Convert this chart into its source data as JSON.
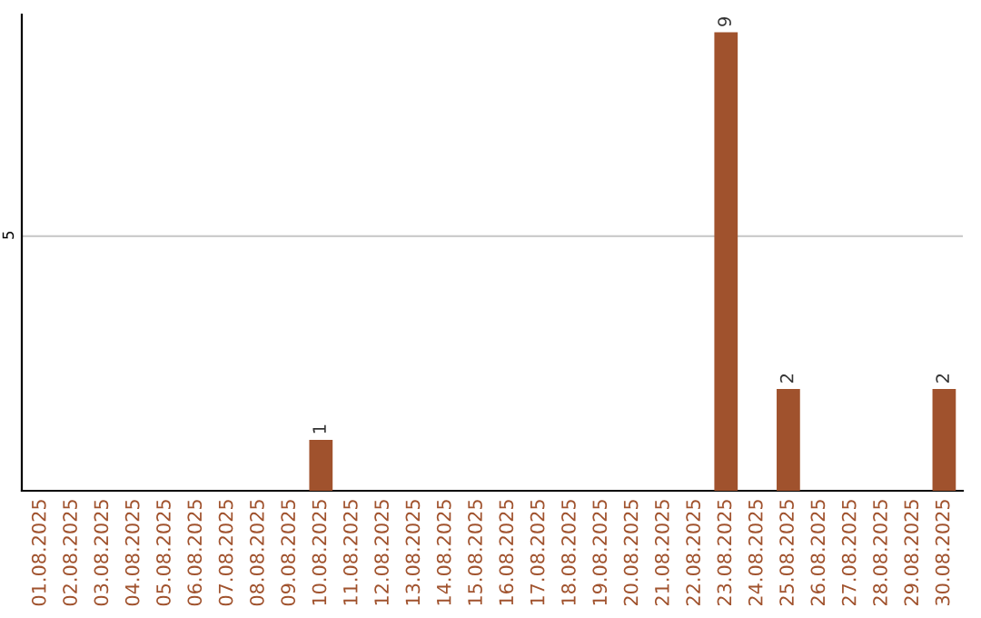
{
  "chart_data": {
    "type": "bar",
    "categories": [
      "01.08.2025",
      "02.08.2025",
      "03.08.2025",
      "04.08.2025",
      "05.08.2025",
      "06.08.2025",
      "07.08.2025",
      "08.08.2025",
      "09.08.2025",
      "10.08.2025",
      "11.08.2025",
      "12.08.2025",
      "13.08.2025",
      "14.08.2025",
      "15.08.2025",
      "16.08.2025",
      "17.08.2025",
      "18.08.2025",
      "19.08.2025",
      "20.08.2025",
      "21.08.2025",
      "22.08.2025",
      "23.08.2025",
      "24.08.2025",
      "25.08.2025",
      "26.08.2025",
      "27.08.2025",
      "28.08.2025",
      "29.08.2025",
      "30.08.2025"
    ],
    "values": [
      0,
      0,
      0,
      0,
      0,
      0,
      0,
      0,
      0,
      1,
      0,
      0,
      0,
      0,
      0,
      0,
      0,
      0,
      0,
      0,
      0,
      0,
      9,
      0,
      2,
      0,
      0,
      0,
      0,
      2
    ],
    "value_labels": [
      null,
      null,
      null,
      null,
      null,
      null,
      null,
      null,
      null,
      "1",
      null,
      null,
      null,
      null,
      null,
      null,
      null,
      null,
      null,
      null,
      null,
      null,
      "9",
      null,
      "2",
      null,
      null,
      null,
      null,
      "2"
    ],
    "color": "#a0522d",
    "ylim": [
      0,
      9.35
    ],
    "yticks": [
      5
    ],
    "grid": "y",
    "legend": false
  }
}
